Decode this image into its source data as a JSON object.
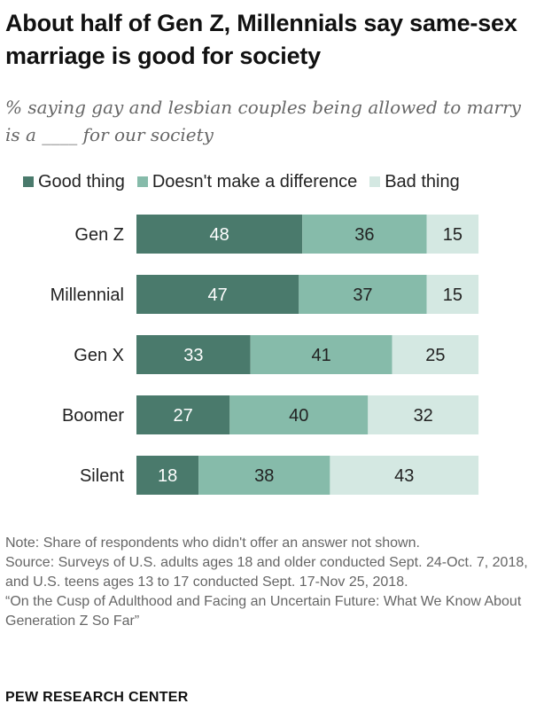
{
  "title": "About half of Gen Z, Millennials say same-sex marriage is good for society",
  "subtitle": "% saying gay and lesbian couples being allowed to marry is a ____ for our society",
  "colors": {
    "good": "#4a7a6c",
    "no_difference": "#86bbaa",
    "bad": "#d4e8e2"
  },
  "chart_data": {
    "type": "bar",
    "orientation": "horizontal",
    "stacked": true,
    "categories": [
      "Gen Z",
      "Millennial",
      "Gen X",
      "Boomer",
      "Silent"
    ],
    "series": [
      {
        "name": "Good thing",
        "values": [
          48,
          47,
          33,
          27,
          18
        ]
      },
      {
        "name": "Doesn't make a difference",
        "values": [
          36,
          37,
          41,
          40,
          38
        ]
      },
      {
        "name": "Bad thing",
        "values": [
          15,
          15,
          25,
          32,
          43
        ]
      }
    ],
    "xlim": [
      0,
      100
    ],
    "legend_position": "top",
    "grid": false
  },
  "notes": {
    "note": "Note: Share of respondents who didn't offer an answer not shown.",
    "source": "Source: Surveys of U.S. adults ages 18 and older conducted Sept. 24-Oct. 7, 2018, and U.S. teens ages 13 to 17 conducted Sept. 17-Nov 25, 2018.",
    "report": "“On the Cusp of Adulthood and Facing an Uncertain Future: What We Know About Generation Z So Far”"
  },
  "brand": "PEW RESEARCH CENTER"
}
